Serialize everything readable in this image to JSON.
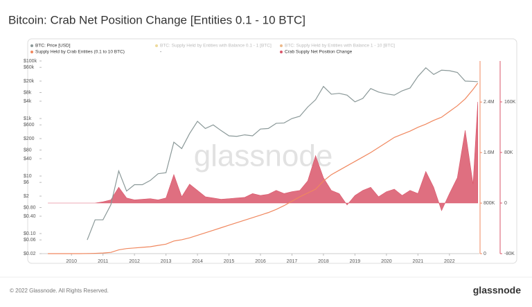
{
  "chart_data": {
    "type": "line",
    "title": "Bitcoin: Crab Net Position Change [Entities 0.1 - 10 BTC]",
    "x": [
      2009.25,
      2009.5,
      2009.75,
      2010,
      2010.25,
      2010.5,
      2010.75,
      2011,
      2011.25,
      2011.5,
      2011.75,
      2012,
      2012.25,
      2012.5,
      2012.75,
      2013,
      2013.25,
      2013.5,
      2013.75,
      2014,
      2014.25,
      2014.5,
      2014.75,
      2015,
      2015.25,
      2015.5,
      2015.75,
      2016,
      2016.25,
      2016.5,
      2016.75,
      2017,
      2017.25,
      2017.5,
      2017.75,
      2018,
      2018.25,
      2018.5,
      2018.75,
      2019,
      2019.25,
      2019.5,
      2019.75,
      2020,
      2020.25,
      2020.5,
      2020.75,
      2021,
      2021.25,
      2021.5,
      2021.75,
      2022,
      2022.25,
      2022.5,
      2022.75,
      2022.9
    ],
    "xlim": [
      2009.05,
      2022.95
    ],
    "xticks": [
      2010,
      2011,
      2012,
      2013,
      2014,
      2015,
      2016,
      2017,
      2018,
      2019,
      2020,
      2021,
      2022
    ],
    "yscale": "log",
    "ylim": [
      0.02,
      100000
    ],
    "yticks": [
      {
        "value": 100000,
        "label": "$100k"
      },
      {
        "value": 60000,
        "label": "$60k"
      },
      {
        "value": 20000,
        "label": "$20k"
      },
      {
        "value": 8000,
        "label": "$8k"
      },
      {
        "value": 4000,
        "label": "$4k"
      },
      {
        "value": 1000,
        "label": "$1k"
      },
      {
        "value": 600,
        "label": "$600"
      },
      {
        "value": 200,
        "label": "$200"
      },
      {
        "value": 80,
        "label": "$80"
      },
      {
        "value": 40,
        "label": "$40"
      },
      {
        "value": 10,
        "label": "$10"
      },
      {
        "value": 6,
        "label": "$6"
      },
      {
        "value": 2,
        "label": "$2"
      },
      {
        "value": 0.8,
        "label": "$0.80"
      },
      {
        "value": 0.4,
        "label": "$0.40"
      },
      {
        "value": 0.1,
        "label": "$0.10"
      },
      {
        "value": 0.06,
        "label": "$0.06"
      },
      {
        "value": 0.02,
        "label": "$0.02"
      }
    ],
    "y2lim": [
      0,
      3050000
    ],
    "y2ticks": [
      0,
      {
        "value": 800000,
        "label": "800K"
      },
      {
        "value": 1600000,
        "label": "1.6M"
      },
      {
        "value": 2400000,
        "label": "2.4M"
      }
    ],
    "y3lim": [
      -80000,
      224700
    ],
    "y3ticks": [
      {
        "value": -80000,
        "label": "-80K"
      },
      0,
      {
        "value": 80000,
        "label": "80K"
      },
      {
        "value": 160000,
        "label": "160K"
      }
    ],
    "series": [
      {
        "name": "BTC: Price [USD]",
        "color": "#8a9898",
        "axis": "y",
        "values": [
          null,
          null,
          null,
          null,
          null,
          0.06,
          0.3,
          0.3,
          1,
          15,
          3,
          5,
          5,
          7,
          12,
          13,
          150,
          90,
          300,
          800,
          450,
          600,
          380,
          250,
          240,
          270,
          250,
          430,
          450,
          680,
          700,
          1000,
          1200,
          2500,
          4500,
          13000,
          7000,
          7500,
          6500,
          3800,
          5000,
          11000,
          8300,
          7200,
          6500,
          9200,
          11500,
          29000,
          58000,
          34000,
          48000,
          46000,
          40000,
          20000,
          19500,
          19000
        ]
      },
      {
        "name": "Supply Held by Crab Entities (0.1 to 10 BTC)",
        "color": "#f0875e",
        "axis": "y2",
        "values": [
          0,
          0,
          0,
          0,
          0,
          2000,
          5000,
          10000,
          20000,
          60000,
          80000,
          90000,
          100000,
          110000,
          130000,
          150000,
          200000,
          220000,
          250000,
          290000,
          330000,
          370000,
          410000,
          450000,
          490000,
          530000,
          570000,
          610000,
          650000,
          700000,
          760000,
          830000,
          900000,
          960000,
          1020000,
          1150000,
          1250000,
          1320000,
          1390000,
          1460000,
          1530000,
          1600000,
          1680000,
          1760000,
          1840000,
          1890000,
          1940000,
          2000000,
          2050000,
          2110000,
          2160000,
          2250000,
          2340000,
          2450000,
          2600000,
          2700000
        ]
      },
      {
        "name": "Crab Supply Net Position Change",
        "color": "#d9566a",
        "axis": "y3",
        "style": "area",
        "values": [
          0,
          0,
          0,
          0,
          0,
          0,
          0,
          2000,
          5000,
          25000,
          8000,
          5000,
          6000,
          7000,
          5000,
          8000,
          45000,
          10000,
          30000,
          20000,
          10000,
          8000,
          6000,
          7000,
          8000,
          9000,
          15000,
          12000,
          14000,
          20000,
          15000,
          18000,
          20000,
          35000,
          75000,
          40000,
          20000,
          15000,
          -3000,
          12000,
          20000,
          25000,
          10000,
          18000,
          22000,
          12000,
          20000,
          15000,
          50000,
          25000,
          -12000,
          15000,
          40000,
          115000,
          30000,
          160000
        ]
      }
    ],
    "inactive_series": [
      {
        "name": "BTC: Supply Held by Entities with Balance 0.1 - 1 [BTC]",
        "color": "#e3c15a"
      },
      {
        "name": "BTC: Supply Held by Entities with Balance 1 - 10 [BTC]",
        "color": "#e08a3c"
      }
    ],
    "legend_note": "-",
    "watermark": "glassnode",
    "footer": "© 2022 Glassnode. All Rights Reserved.",
    "logo": "glassnode"
  }
}
